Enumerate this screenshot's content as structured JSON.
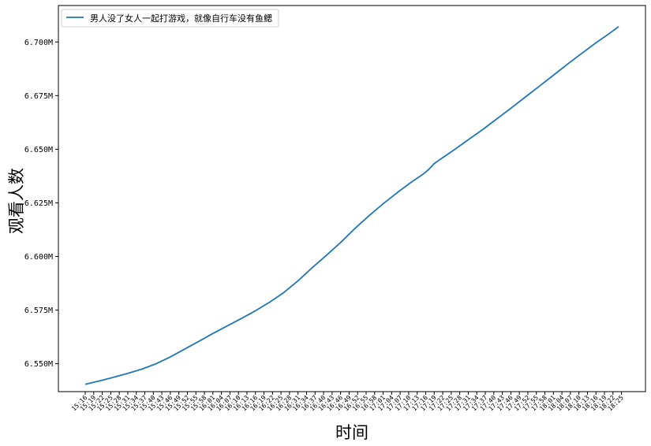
{
  "chart_data": {
    "type": "line",
    "title": "",
    "xlabel": "时间",
    "ylabel": "观看人数",
    "ylim": [
      6537000,
      6717000
    ],
    "yticks": [
      6550000,
      6575000,
      6600000,
      6625000,
      6650000,
      6675000,
      6700000
    ],
    "ytick_labels": [
      "6.550M",
      "6.575M",
      "6.600M",
      "6.625M",
      "6.650M",
      "6.675M",
      "6.700M"
    ],
    "grid": false,
    "legend_location": "upper left",
    "series": [
      {
        "name": "男人没了女人一起打游戏，就像自行车没有鱼鳃",
        "color": "#1f77b4",
        "points": [
          [
            0,
            6540400
          ],
          [
            5,
            6542000
          ],
          [
            10,
            6543700
          ],
          [
            15,
            6545500
          ],
          [
            20,
            6547500
          ],
          [
            25,
            6550000
          ],
          [
            30,
            6553200
          ],
          [
            35,
            6556800
          ],
          [
            40,
            6560400
          ],
          [
            45,
            6564100
          ],
          [
            50,
            6567600
          ],
          [
            55,
            6571100
          ],
          [
            60,
            6574700
          ],
          [
            65,
            6578700
          ],
          [
            70,
            6583200
          ],
          [
            75,
            6588700
          ],
          [
            80,
            6594800
          ],
          [
            85,
            6600500
          ],
          [
            90,
            6606500
          ],
          [
            95,
            6613000
          ],
          [
            100,
            6619000
          ],
          [
            105,
            6624600
          ],
          [
            110,
            6629800
          ],
          [
            115,
            6634700
          ],
          [
            119,
            6638300
          ],
          [
            121,
            6640500
          ],
          [
            123,
            6643300
          ],
          [
            125,
            6645200
          ],
          [
            130,
            6649700
          ],
          [
            135,
            6654400
          ],
          [
            140,
            6659100
          ],
          [
            145,
            6664100
          ],
          [
            150,
            6669100
          ],
          [
            155,
            6674200
          ],
          [
            160,
            6679300
          ],
          [
            165,
            6684500
          ],
          [
            170,
            6689700
          ],
          [
            175,
            6694700
          ],
          [
            180,
            6699600
          ],
          [
            185,
            6704200
          ],
          [
            188,
            6707200
          ]
        ]
      }
    ],
    "x_count": 189,
    "x_tick_step": 3,
    "x_tick_labels": [
      "15:16",
      "15:19",
      "15:22",
      "15:25",
      "15:28",
      "15:31",
      "15:34",
      "15:37",
      "15:40",
      "15:43",
      "15:46",
      "15:49",
      "15:52",
      "15:55",
      "15:58",
      "16:01",
      "16:04",
      "16:07",
      "16:10",
      "16:13",
      "16:16",
      "16:19",
      "16:22",
      "16:25",
      "16:28",
      "16:31",
      "16:34",
      "16:37",
      "16:40",
      "16:43",
      "16:46",
      "16:49",
      "16:52",
      "16:55",
      "16:58",
      "17:01",
      "17:04",
      "17:07",
      "17:10",
      "17:13",
      "17:16",
      "17:19",
      "17:22",
      "17:25",
      "17:28",
      "17:31",
      "17:34",
      "17:37",
      "17:40",
      "17:43",
      "17:46",
      "17:49",
      "17:52",
      "17:55",
      "17:58",
      "18:01",
      "18:04",
      "18:07",
      "18:10",
      "18:13",
      "18:16",
      "18:19",
      "18:22",
      "18:25"
    ]
  }
}
